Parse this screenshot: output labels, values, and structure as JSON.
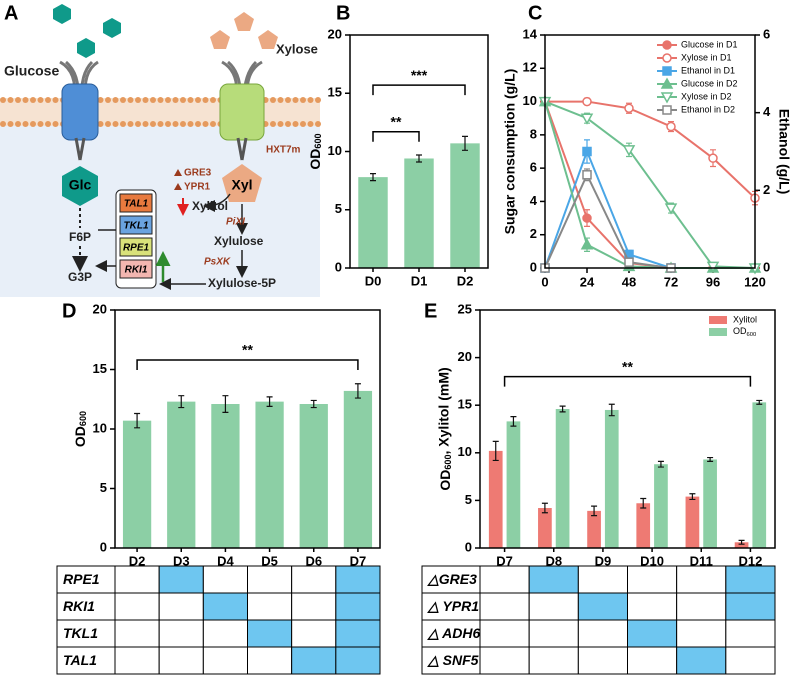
{
  "panel_a": {
    "label": "A",
    "glucose": "Glucose",
    "xylose": "Xylose",
    "transporter": "HXT7m",
    "glc": "Glc",
    "xyl": "Xyl",
    "reductases": [
      "GRE3",
      "YPR1"
    ],
    "xylitol": "Xylitol",
    "isomerase": "PiXI",
    "xylulose": "Xylulose",
    "kinase": "PsXK",
    "xylulose_5p": "Xylulose-5P",
    "f6p": "F6P",
    "g3p": "G3P",
    "ppp_genes": [
      "TAL1",
      "TKL1",
      "RPE1",
      "RKI1"
    ]
  },
  "chart_data": [
    {
      "panel_label": "B",
      "type": "bar",
      "y_label": "OD600",
      "categories": [
        "D0",
        "D1",
        "D2"
      ],
      "values": [
        7.8,
        9.4,
        10.7
      ],
      "errors": [
        0.3,
        0.3,
        0.6
      ],
      "color": "#8ccfa5",
      "ylim": [
        0,
        20
      ],
      "yticks": [
        0,
        5,
        10,
        15,
        20
      ],
      "brackets": [
        {
          "from": "D0",
          "to": "D1",
          "label": "**"
        },
        {
          "from": "D0",
          "to": "D2",
          "label": "***"
        }
      ]
    },
    {
      "panel_label": "C",
      "type": "line",
      "y_label": "Sugar consumption (g/L)",
      "y2_label": "Ethanol (g/L)",
      "x": [
        0,
        24,
        48,
        72,
        96,
        120
      ],
      "xlim": [
        0,
        120
      ],
      "xticks": [
        0,
        24,
        48,
        72,
        96,
        120
      ],
      "ylim": [
        0,
        14
      ],
      "yticks": [
        0,
        2,
        4,
        6,
        8,
        10,
        12,
        14
      ],
      "y2lim": [
        0,
        6
      ],
      "y2ticks": [
        0,
        2,
        4,
        6
      ],
      "legend": "upper right",
      "series": [
        {
          "name": "Glucose in D1",
          "color": "#e8736b",
          "marker": "circle",
          "values": [
            10,
            3.0,
            0.3,
            0,
            0,
            0
          ],
          "errors": [
            0.1,
            0.5,
            0.2,
            0,
            0,
            0
          ]
        },
        {
          "name": "Xylose in D1",
          "color": "#e8736b",
          "marker": "circle-open",
          "values": [
            10,
            10,
            9.6,
            8.5,
            6.6,
            4.2
          ],
          "errors": [
            0.1,
            0.2,
            0.3,
            0.3,
            0.5,
            0.4
          ]
        },
        {
          "name": "Ethanol in D1",
          "color": "#4aa6e6",
          "marker": "square",
          "axis": "y2",
          "values": [
            0,
            3.0,
            0.35,
            0,
            null,
            null
          ],
          "errors": [
            0,
            0.3,
            0.1,
            0,
            null,
            null
          ]
        },
        {
          "name": "Glucose in D2",
          "color": "#6dbf8f",
          "marker": "triangle-up",
          "values": [
            10,
            1.4,
            0.1,
            0,
            0,
            0
          ],
          "errors": [
            0.1,
            0.4,
            0.1,
            0,
            0,
            0
          ]
        },
        {
          "name": "Xylose in D2",
          "color": "#6dbf8f",
          "marker": "triangle-down-open",
          "values": [
            10,
            9.0,
            7.1,
            3.6,
            0.1,
            0
          ],
          "errors": [
            0.1,
            0.3,
            0.4,
            0.3,
            0.1,
            0.1
          ]
        },
        {
          "name": "Ethanol in D2",
          "color": "#888888",
          "marker": "square-open",
          "axis": "y2",
          "values": [
            0,
            2.4,
            0.15,
            0,
            null,
            null
          ],
          "errors": [
            0,
            0.15,
            0.05,
            0,
            null,
            null
          ]
        }
      ]
    },
    {
      "panel_label": "D",
      "type": "bar",
      "y_label": "OD600",
      "categories": [
        "D2",
        "D3",
        "D4",
        "D5",
        "D6",
        "D7"
      ],
      "values": [
        10.7,
        12.3,
        12.1,
        12.3,
        12.1,
        13.2
      ],
      "errors": [
        0.6,
        0.5,
        0.7,
        0.4,
        0.3,
        0.6
      ],
      "color": "#8ccfa5",
      "ylim": [
        0,
        20
      ],
      "yticks": [
        0,
        5,
        10,
        15,
        20
      ],
      "brackets": [
        {
          "from": "D2",
          "to": "D7",
          "label": "**"
        }
      ],
      "table_rows": [
        "RPE1",
        "RKI1",
        "TKL1",
        "TAL1"
      ],
      "table_color": "#6ec6f0",
      "table_filled": [
        [
          false,
          true,
          false,
          false,
          false,
          true
        ],
        [
          false,
          false,
          true,
          false,
          false,
          true
        ],
        [
          false,
          false,
          false,
          true,
          false,
          true
        ],
        [
          false,
          false,
          false,
          false,
          true,
          true
        ]
      ]
    },
    {
      "panel_label": "E",
      "type": "bar",
      "y_label": "OD600, Xylitol (mM)",
      "categories": [
        "D7",
        "D8",
        "D9",
        "D10",
        "D11",
        "D12"
      ],
      "ylim": [
        0,
        25
      ],
      "yticks": [
        0,
        5,
        10,
        15,
        20,
        25
      ],
      "legend": "upper right",
      "series": [
        {
          "name": "Xylitol",
          "color": "#ee7a73",
          "values": [
            10.2,
            4.2,
            3.9,
            4.7,
            5.4,
            0.6
          ],
          "errors": [
            1.0,
            0.5,
            0.5,
            0.5,
            0.3,
            0.2
          ]
        },
        {
          "name": "OD600",
          "color": "#8ccfa5",
          "values": [
            13.3,
            14.6,
            14.5,
            8.8,
            9.3,
            15.3
          ],
          "errors": [
            0.5,
            0.3,
            0.6,
            0.3,
            0.2,
            0.2
          ]
        }
      ],
      "brackets": [
        {
          "from": "D7",
          "to": "D12",
          "label": "**"
        }
      ],
      "table_rows": [
        "△GRE3",
        "△ YPR1",
        "△ ADH6",
        "△ SNF5"
      ],
      "table_color": "#6ec6f0",
      "table_filled": [
        [
          false,
          true,
          false,
          false,
          false,
          true
        ],
        [
          false,
          false,
          true,
          false,
          false,
          true
        ],
        [
          false,
          false,
          false,
          true,
          false,
          false
        ],
        [
          false,
          false,
          false,
          false,
          true,
          false
        ]
      ]
    }
  ]
}
